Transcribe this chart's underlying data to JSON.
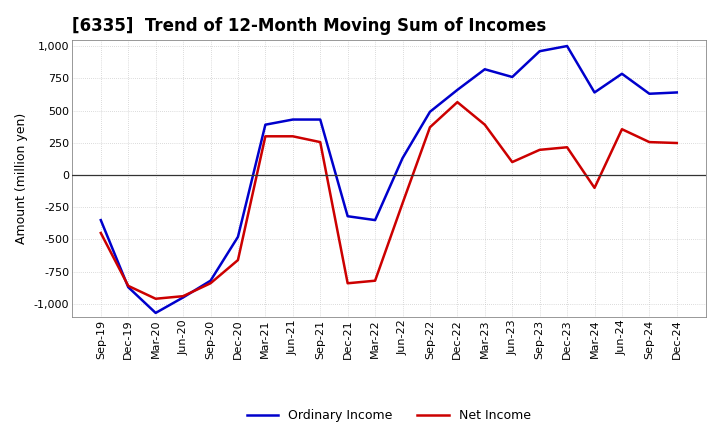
{
  "title": "[6335]  Trend of 12-Month Moving Sum of Incomes",
  "ylabel": "Amount (million yen)",
  "x_labels": [
    "Sep-19",
    "Dec-19",
    "Mar-20",
    "Jun-20",
    "Sep-20",
    "Dec-20",
    "Mar-21",
    "Jun-21",
    "Sep-21",
    "Dec-21",
    "Mar-22",
    "Jun-22",
    "Sep-22",
    "Dec-22",
    "Mar-23",
    "Jun-23",
    "Sep-23",
    "Dec-23",
    "Mar-24",
    "Jun-24",
    "Sep-24",
    "Dec-24"
  ],
  "ordinary_income": [
    -350,
    -870,
    -1070,
    -950,
    -820,
    -480,
    390,
    430,
    430,
    -320,
    -350,
    130,
    490,
    660,
    820,
    760,
    960,
    1000,
    640,
    785,
    630,
    640
  ],
  "net_income": [
    -450,
    -860,
    -960,
    -940,
    -840,
    -660,
    300,
    300,
    255,
    -840,
    -820,
    -220,
    370,
    565,
    390,
    100,
    195,
    215,
    -100,
    355,
    255,
    248
  ],
  "ordinary_color": "#0000cc",
  "net_color": "#cc0000",
  "ylim": [
    -1100,
    1050
  ],
  "yticks": [
    -1000,
    -750,
    -500,
    -250,
    0,
    250,
    500,
    750,
    1000
  ],
  "background_color": "#ffffff",
  "plot_bg_color": "#ffffff",
  "grid_color": "#bbbbbb",
  "legend_ordinary": "Ordinary Income",
  "legend_net": "Net Income",
  "title_fontsize": 12,
  "ylabel_fontsize": 9,
  "tick_fontsize": 8
}
